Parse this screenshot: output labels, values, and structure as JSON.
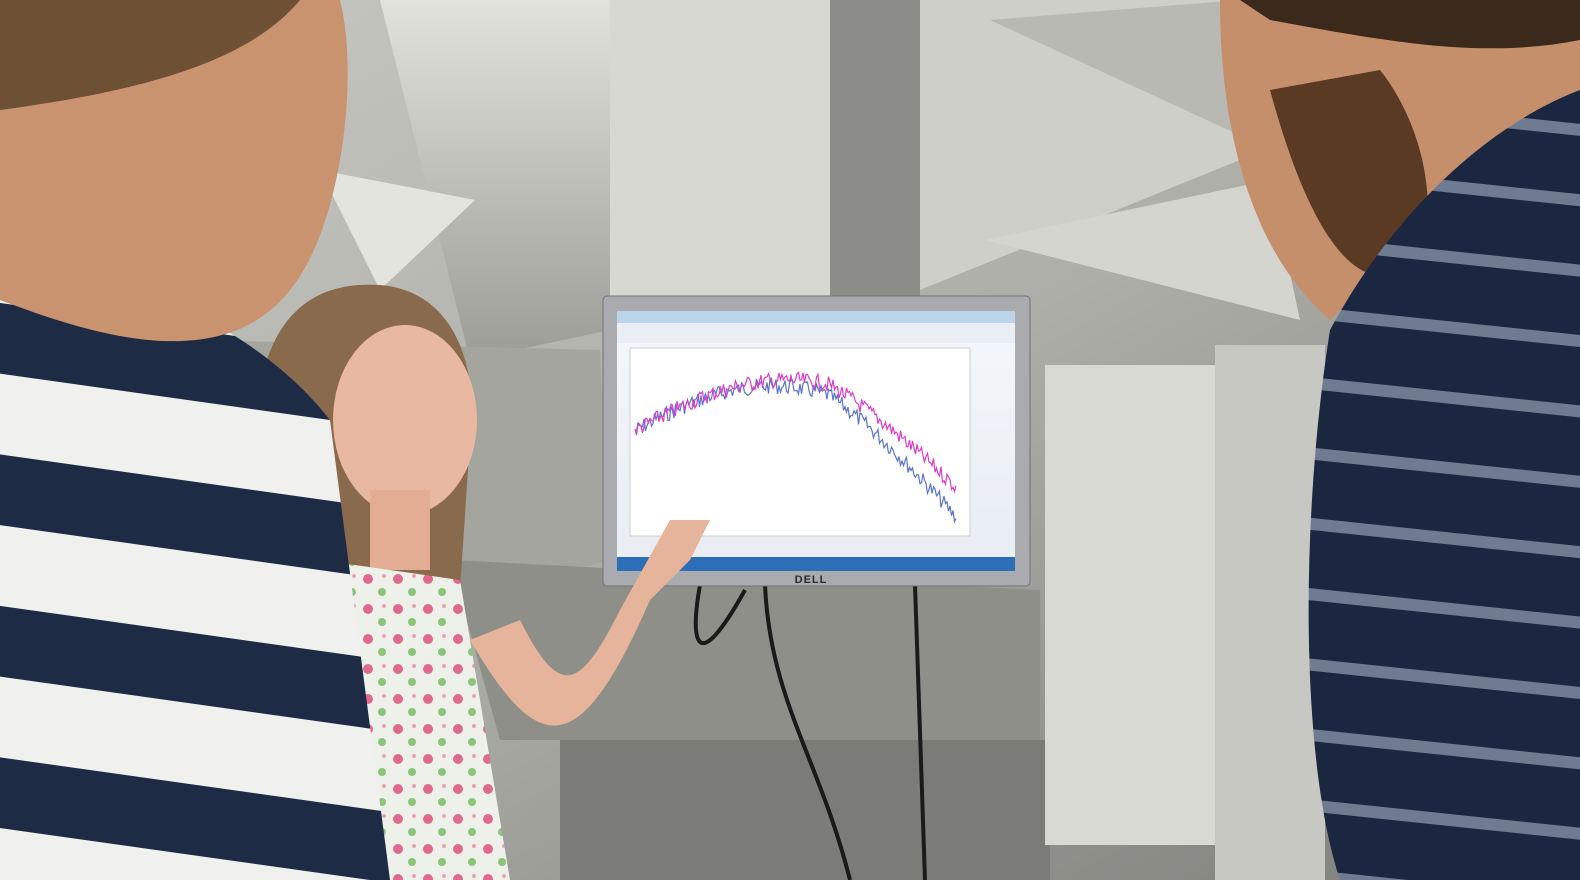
{
  "monitor": {
    "brand": "DELL"
  }
}
